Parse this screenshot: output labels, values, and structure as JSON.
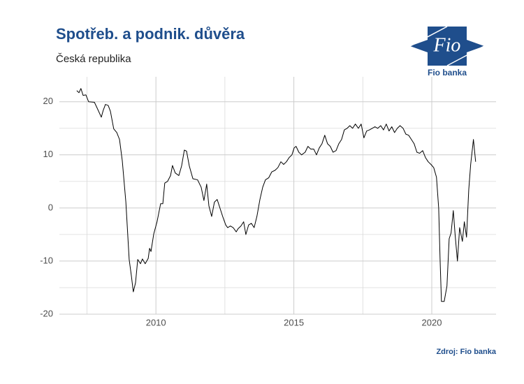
{
  "chart_data": {
    "type": "line",
    "title": "Spotřeb. a podnik. důvěra",
    "subtitle": "Česká republika",
    "source": "Zdroj: Fio banka",
    "logo": {
      "text": "Fio",
      "caption": "Fio banka"
    },
    "xlim": [
      2006.5,
      2022.33
    ],
    "ylim": [
      -20,
      24.7
    ],
    "xticks": [
      2010,
      2015,
      2020
    ],
    "yticks": [
      -20,
      -10,
      0,
      10,
      20
    ],
    "xminor": [
      2007.5,
      2012.5,
      2017.5
    ],
    "yminor": [
      -15,
      -5,
      5,
      15
    ],
    "grid": true,
    "series": [
      {
        "color": "#000000",
        "x": [
          2007.13,
          2007.21,
          2007.28,
          2007.36,
          2007.46,
          2007.56,
          2007.77,
          2007.87,
          2008.02,
          2008.09,
          2008.17,
          2008.27,
          2008.35,
          2008.47,
          2008.58,
          2008.68,
          2008.78,
          2008.91,
          2009.03,
          2009.11,
          2009.18,
          2009.26,
          2009.34,
          2009.44,
          2009.51,
          2009.61,
          2009.72,
          2009.77,
          2009.82,
          2009.92,
          2010.04,
          2010.17,
          2010.25,
          2010.32,
          2010.42,
          2010.53,
          2010.6,
          2010.7,
          2010.83,
          2010.93,
          2011.03,
          2011.11,
          2011.21,
          2011.34,
          2011.51,
          2011.64,
          2011.74,
          2011.84,
          2011.92,
          2012.02,
          2012.12,
          2012.22,
          2012.32,
          2012.42,
          2012.53,
          2012.6,
          2012.7,
          2012.8,
          2012.91,
          2012.98,
          2013.08,
          2013.18,
          2013.26,
          2013.36,
          2013.46,
          2013.56,
          2013.66,
          2013.77,
          2013.87,
          2013.97,
          2014.09,
          2014.2,
          2014.32,
          2014.42,
          2014.53,
          2014.63,
          2014.73,
          2014.83,
          2014.93,
          2015.01,
          2015.08,
          2015.18,
          2015.28,
          2015.41,
          2015.51,
          2015.61,
          2015.72,
          2015.82,
          2015.92,
          2016.02,
          2016.12,
          2016.22,
          2016.32,
          2016.42,
          2016.53,
          2016.63,
          2016.73,
          2016.83,
          2016.93,
          2017.03,
          2017.13,
          2017.23,
          2017.34,
          2017.44,
          2017.54,
          2017.64,
          2017.74,
          2017.84,
          2017.94,
          2018.04,
          2018.15,
          2018.25,
          2018.35,
          2018.45,
          2018.55,
          2018.65,
          2018.75,
          2018.85,
          2018.96,
          2019.06,
          2019.16,
          2019.26,
          2019.36,
          2019.46,
          2019.56,
          2019.67,
          2019.77,
          2019.87,
          2019.97,
          2020.07,
          2020.17,
          2020.25,
          2020.3,
          2020.35,
          2020.45,
          2020.55,
          2020.63,
          2020.7,
          2020.78,
          2020.85,
          2020.93,
          2021.01,
          2021.11,
          2021.18,
          2021.26,
          2021.34,
          2021.41,
          2021.51,
          2021.59
        ],
        "values": [
          22.1,
          21.7,
          22.5,
          21.2,
          21.3,
          20,
          19.9,
          18.8,
          17.1,
          18.4,
          19.5,
          19.3,
          18.2,
          14.9,
          14.2,
          12.9,
          8.9,
          1.1,
          -9.7,
          -12.8,
          -15.8,
          -14.1,
          -9.7,
          -10.5,
          -9.6,
          -10.5,
          -9.5,
          -7.6,
          -8.2,
          -4.9,
          -2.6,
          0.8,
          0.8,
          4.7,
          5,
          6.1,
          8,
          6.6,
          6.1,
          7.9,
          10.9,
          10.7,
          7.9,
          5.5,
          5.3,
          3.9,
          1.4,
          4.5,
          0.4,
          -1.6,
          1.1,
          1.6,
          0,
          -1.6,
          -3.2,
          -3.7,
          -3.4,
          -3.7,
          -4.5,
          -3.9,
          -3.4,
          -2.6,
          -5,
          -3.2,
          -2.9,
          -3.7,
          -1.6,
          1.6,
          3.9,
          5.3,
          5.7,
          6.8,
          7.1,
          7.6,
          8.7,
          8.2,
          8.7,
          9.5,
          10,
          11.3,
          11.6,
          10.5,
          10,
          10.5,
          11.6,
          11.1,
          11.1,
          10,
          11.3,
          12.1,
          13.7,
          12.1,
          11.6,
          10.5,
          10.8,
          12.1,
          12.9,
          14.7,
          15,
          15.5,
          15,
          15.8,
          15,
          15.8,
          13.2,
          14.5,
          14.7,
          15,
          15.3,
          15,
          15.5,
          14.7,
          15.8,
          14.5,
          15.3,
          14.2,
          15,
          15.5,
          15,
          13.9,
          13.7,
          12.9,
          12.1,
          10.5,
          10.3,
          10.8,
          9.5,
          8.7,
          8.2,
          7.6,
          5.8,
          0,
          -9.5,
          -17.6,
          -17.6,
          -14.7,
          -5.8,
          -4.7,
          -0.5,
          -5.3,
          -10,
          -3.7,
          -6.3,
          -2.6,
          -5.5,
          3.4,
          8.2,
          12.9,
          8.7
        ]
      }
    ]
  }
}
